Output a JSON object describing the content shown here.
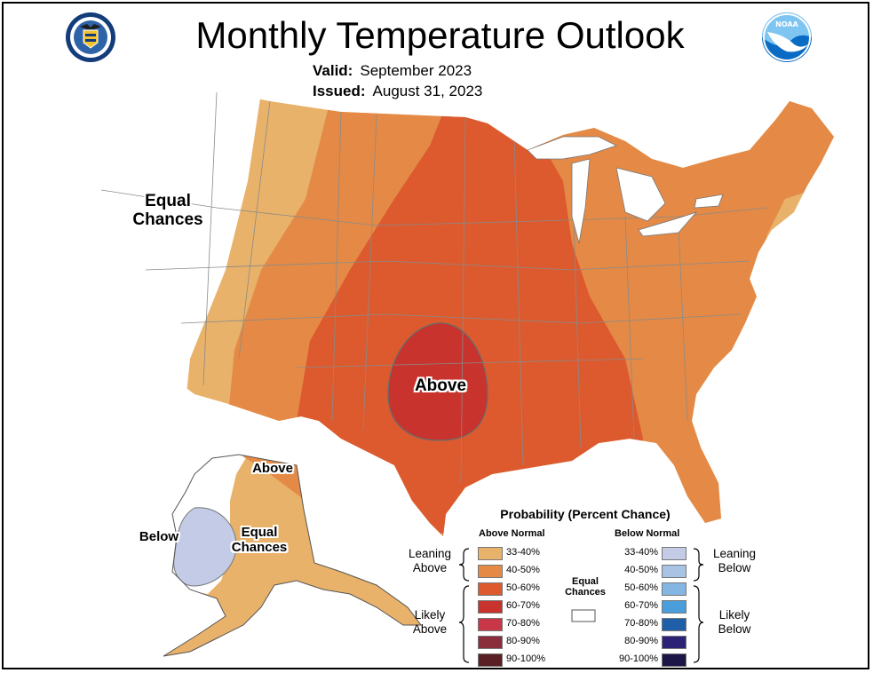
{
  "title": "Monthly Temperature Outlook",
  "valid": {
    "label": "Valid:",
    "value": "September 2023"
  },
  "issued": {
    "label": "Issued:",
    "value": "August 31, 2023"
  },
  "map_labels": {
    "equal_conus": "Equal\nChances",
    "above_center": "Above",
    "alaska_above": "Above",
    "alaska_below": "Below",
    "alaska_equal": "Equal\nChances"
  },
  "legend": {
    "title": "Probability (Percent Chance)",
    "above_header": "Above Normal",
    "below_header": "Below Normal",
    "equal_chances": "Equal\nChances",
    "leaning_above": "Leaning\nAbove",
    "likely_above": "Likely\nAbove",
    "leaning_below": "Leaning\nBelow",
    "likely_below": "Likely\nBelow",
    "above_bins": [
      {
        "label": "33-40%",
        "color": "#e8b26a"
      },
      {
        "label": "40-50%",
        "color": "#e48a46"
      },
      {
        "label": "50-60%",
        "color": "#dc5a2e"
      },
      {
        "label": "60-70%",
        "color": "#c8332d"
      },
      {
        "label": "70-80%",
        "color": "#c93648"
      },
      {
        "label": "80-90%",
        "color": "#8a2e3c"
      },
      {
        "label": "90-100%",
        "color": "#5a1f24"
      }
    ],
    "below_bins": [
      {
        "label": "33-40%",
        "color": "#c3cbe6"
      },
      {
        "label": "40-50%",
        "color": "#a9c3e4"
      },
      {
        "label": "50-60%",
        "color": "#84b6e4"
      },
      {
        "label": "60-70%",
        "color": "#4a9edc"
      },
      {
        "label": "70-80%",
        "color": "#1f5fa8"
      },
      {
        "label": "80-90%",
        "color": "#2c2376"
      },
      {
        "label": "90-100%",
        "color": "#1b1645"
      }
    ]
  },
  "colors": {
    "equal": "#ffffff",
    "border": "#8a8a8a",
    "water": "#ffffff"
  },
  "icons": [
    "doc-seal-icon",
    "noaa-logo-icon"
  ]
}
